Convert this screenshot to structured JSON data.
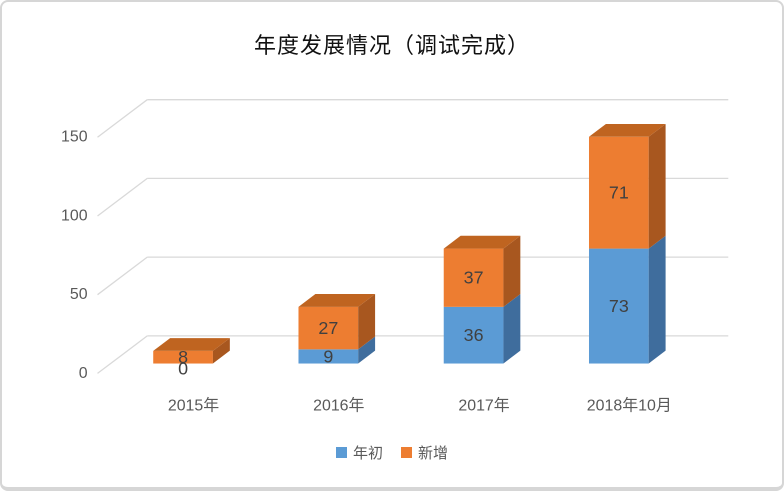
{
  "card": {
    "background": "#ffffff",
    "border_color": "#d6d6d6"
  },
  "chart_data": {
    "type": "bar",
    "variant": "3d-stacked-column",
    "title": "年度发展情况（调试完成）",
    "categories": [
      "2015年",
      "2016年",
      "2017年",
      "2018年10月"
    ],
    "series": [
      {
        "name": "年初",
        "color": "#5b9bd5",
        "side_color": "#3f6d9d",
        "top_color": "#4a84b8",
        "values": [
          0,
          9,
          36,
          73
        ]
      },
      {
        "name": "新增",
        "color": "#ed7d31",
        "side_color": "#a8571f",
        "top_color": "#bf6420",
        "values": [
          8,
          27,
          37,
          71
        ]
      }
    ],
    "data_labels": {
      "年初": [
        "0",
        "9",
        "36",
        "73"
      ],
      "新增": [
        "8",
        "27",
        "37",
        "71"
      ]
    },
    "xlabel": "",
    "ylabel": "",
    "ylim": [
      0,
      150
    ],
    "yticks": [
      "0",
      "50",
      "100",
      "150"
    ],
    "grid": true,
    "legend_position": "bottom",
    "colors": {
      "gridline": "#d9d9d9",
      "axis_label": "#595959",
      "data_label": "#404040",
      "title": "#111111"
    }
  }
}
